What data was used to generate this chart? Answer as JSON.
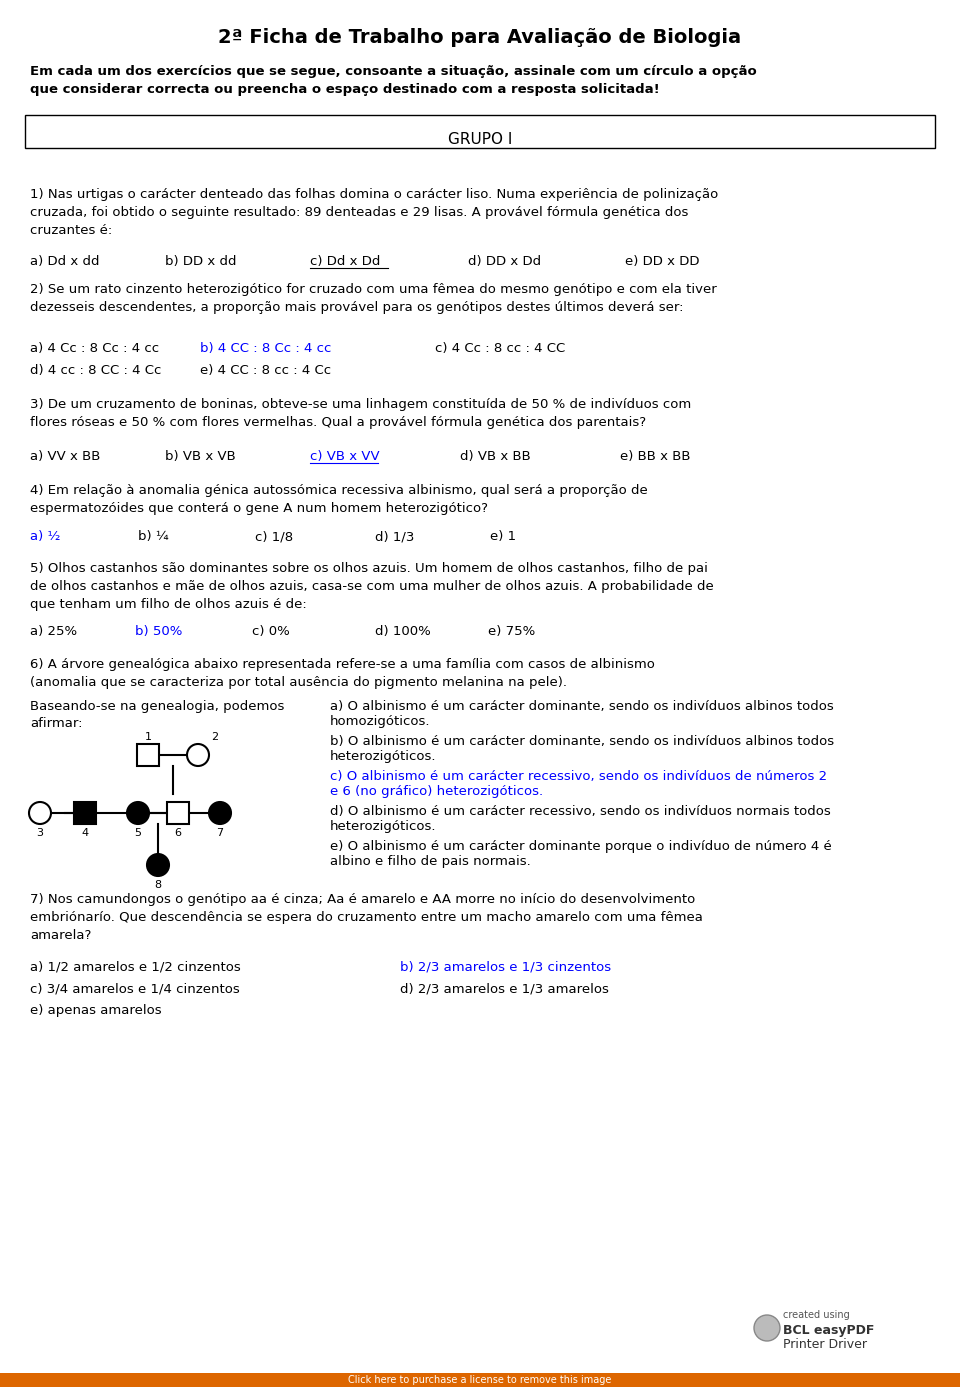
{
  "title": "2ª Ficha de Trabalho para Avaliação de Biologia",
  "intro": "Em cada um dos exercícios que se segue, consoante a situação, assinale com um círculo a opção\nque considerar correcta ou preencha o espaço destinado com a resposta solicitada!",
  "group_label": "GRUPO I",
  "q1_text": "1) Nas urtigas o carácter denteado das folhas domina o carácter liso. Numa experiência de polinização\ncruzada, foi obtido o seguinte resultado: 89 denteadas e 29 lisas. A provável fórmula genética dos\ncruzantes é:",
  "q1_options": [
    [
      "a) Dd x dd",
      false,
      "black"
    ],
    [
      "b) DD x dd",
      false,
      "black"
    ],
    [
      "c) Dd x Dd",
      true,
      "black"
    ],
    [
      "d) DD x Dd",
      false,
      "black"
    ],
    [
      "e) DD x DD",
      false,
      "black"
    ]
  ],
  "q2_text": "2) Se um rato cinzento heterozigótico for cruzado com uma fêmea do mesmo genótipo e com ela tiver\ndezesseis descendentes, a proporção mais provável para os genótipos destes últimos deverá ser:",
  "q2_options_row1": [
    [
      "a) 4 Cc : 8 Cc : 4 cc",
      false,
      "black"
    ],
    [
      "b) 4 CC : 8 Cc : 4 cc",
      true,
      "blue"
    ],
    [
      "c) 4 Cc : 8 cc : 4 CC",
      false,
      "black"
    ]
  ],
  "q2_options_row2": [
    [
      "d) 4 cc : 8 CC : 4 Cc",
      false,
      "black"
    ],
    [
      "e) 4 CC : 8 cc : 4 Cc",
      false,
      "black"
    ]
  ],
  "q3_text": "3) De um cruzamento de boninas, obteve-se uma linhagem constituída de 50 % de indivíduos com\nflores róseas e 50 % com flores vermelhas. Qual a provável fórmula genética dos parentais?",
  "q3_options": [
    [
      "a) VV x BB",
      false,
      "black"
    ],
    [
      "b) VB x VB",
      false,
      "black"
    ],
    [
      "c) VB x VV",
      true,
      "blue"
    ],
    [
      "d) VB x BB",
      false,
      "black"
    ],
    [
      "e) BB x BB",
      false,
      "black"
    ]
  ],
  "q4_text": "4) Em relação à anomalia génica autossómica recessiva albinismo, qual será a proporção de\nespermatozóides que conterá o gene A num homem heterozigótico?",
  "q4_options": [
    [
      "a) ½",
      true,
      "blue"
    ],
    [
      "b) ¼",
      false,
      "black"
    ],
    [
      "c) 1/8",
      false,
      "black"
    ],
    [
      "d) 1/3",
      false,
      "black"
    ],
    [
      "e) 1",
      false,
      "black"
    ]
  ],
  "q5_text": "5) Olhos castanhos são dominantes sobre os olhos azuis. Um homem de olhos castanhos, filho de pai\nde olhos castanhos e mãe de olhos azuis, casa-se com uma mulher de olhos azuis. A probabilidade de\nque tenham um filho de olhos azuis é de:",
  "q5_options": [
    [
      "a) 25%",
      false,
      "black"
    ],
    [
      "b) 50%",
      true,
      "blue"
    ],
    [
      "c) 0%",
      false,
      "black"
    ],
    [
      "d) 100%",
      false,
      "black"
    ],
    [
      "e) 75%",
      false,
      "black"
    ]
  ],
  "q6_text": "6) A árvore genealógica abaixo representada refere-se a uma família com casos de albinismo\n(anomalia que se caracteriza por total ausência do pigmento melanina na pele).",
  "q6_left_text1": "Baseando-se na genealogia, podemos",
  "q6_left_text2": "afirmar:",
  "q6_answers": [
    [
      "a) O albinismo é um carácter dominante, sendo os indivíduos albinos todos\nhomozigóticos.",
      false,
      "black"
    ],
    [
      "b) O albinismo é um carácter dominante, sendo os indivíduos albinos todos\nheterozigóticos.",
      false,
      "black"
    ],
    [
      "c) O albinismo é um carácter recessivo, sendo os indivíduos de números 2\ne 6 (no gráfico) heterozigóticos.",
      true,
      "blue"
    ],
    [
      "d) O albinismo é um carácter recessivo, sendo os indivíduos normais todos\nheterozigóticos.",
      false,
      "black"
    ],
    [
      "e) O albinismo é um carácter dominante porque o indivíduo de número 4 é\nalbino e filho de pais normais.",
      false,
      "black"
    ]
  ],
  "q7_text": "7) Nos camundongos o genótipo aa é cinza; Aa é amarelo e AA morre no início do desenvolvimento\nembriónarío. Que descendência se espera do cruzamento entre um macho amarelo com uma fêmea\namarela?",
  "q7_options_row1": [
    [
      "a) 1/2 amarelos e 1/2 cinzentos",
      false,
      "black"
    ],
    [
      "b) 2/3 amarelos e 1/3 cinzentos",
      true,
      "blue"
    ]
  ],
  "q7_options_row2": [
    [
      "c) 3/4 amarelos e 1/4 cinzentos",
      false,
      "black"
    ],
    [
      "d) 2/3 amarelos e 1/3 amarelos",
      false,
      "black"
    ]
  ],
  "q7_options_row3": [
    [
      "e) apenas amarelos",
      false,
      "black"
    ]
  ],
  "bg_color": "#ffffff",
  "text_color": "#000000",
  "blue_color": "#0000ff"
}
